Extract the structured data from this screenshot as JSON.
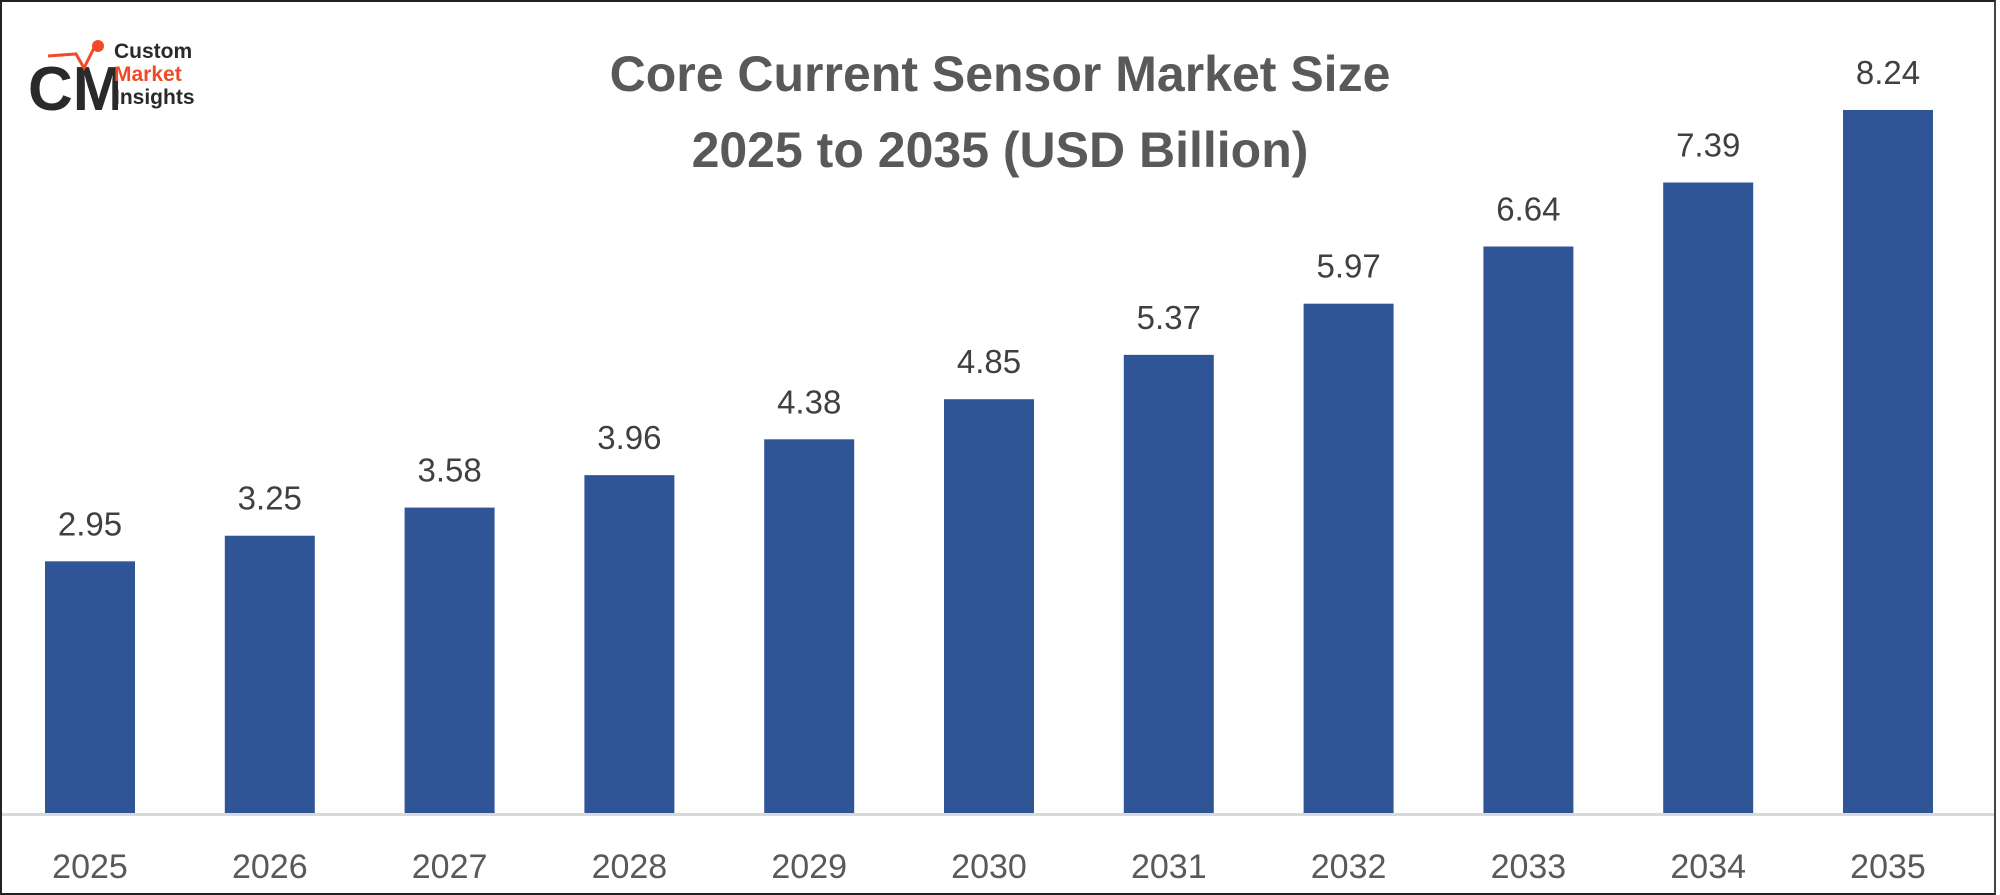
{
  "logo": {
    "mark": "CMI",
    "line1": "Custom",
    "line2": "Market",
    "line3": "Insights",
    "accent_color": "#f04a28"
  },
  "chart_data": {
    "type": "bar",
    "title": "Core Current Sensor Market Size",
    "subtitle": "2025 to 2035 (USD Billion)",
    "categories": [
      "2025",
      "2026",
      "2027",
      "2028",
      "2029",
      "2030",
      "2031",
      "2032",
      "2033",
      "2034",
      "2035"
    ],
    "values": [
      2.95,
      3.25,
      3.58,
      3.96,
      4.38,
      4.85,
      5.37,
      5.97,
      6.64,
      7.39,
      8.24
    ],
    "data_labels": [
      "2.95",
      "3.25",
      "3.58",
      "3.96",
      "4.38",
      "4.85",
      "5.37",
      "5.97",
      "6.64",
      "7.39",
      "8.24"
    ],
    "xlabel": "",
    "ylabel": "",
    "ylim": [
      0,
      8.24
    ],
    "grid": false,
    "bar_color": "#2f5597"
  }
}
